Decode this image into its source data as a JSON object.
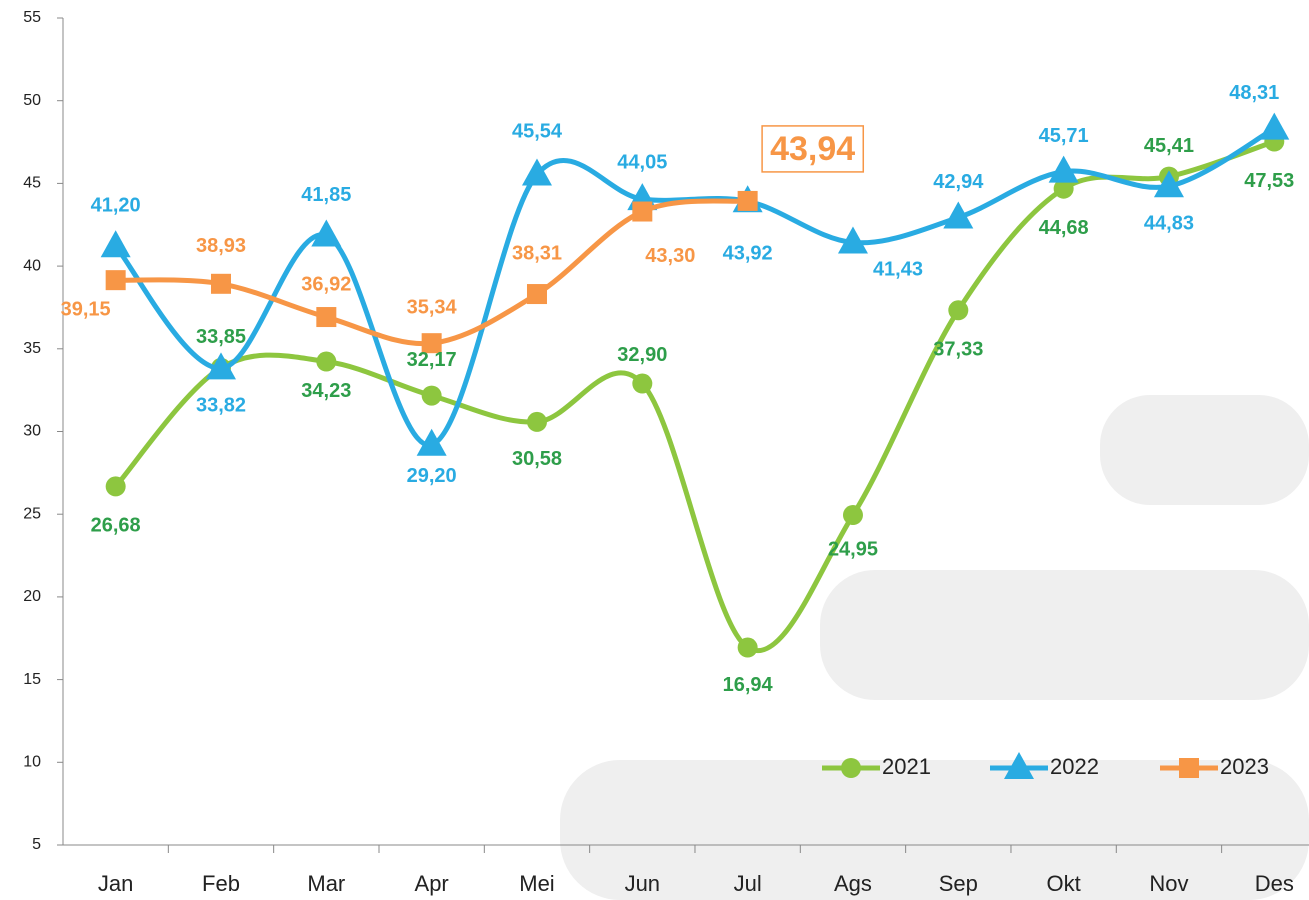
{
  "chart_data": {
    "type": "line",
    "categories": [
      "Jan",
      "Feb",
      "Mar",
      "Apr",
      "Mei",
      "Jun",
      "Jul",
      "Ags",
      "Sep",
      "Okt",
      "Nov",
      "Des"
    ],
    "series": [
      {
        "name": "2021",
        "color": "#8dc63f",
        "label_color": "#2e9e4a",
        "marker": "circle",
        "values": [
          26.68,
          33.85,
          34.23,
          32.17,
          30.58,
          32.9,
          16.94,
          24.95,
          37.33,
          44.68,
          45.41,
          47.53
        ],
        "value_labels": [
          "26,68",
          "33,85",
          "34,23",
          "32,17",
          "30,58",
          "32,90",
          "16,94",
          "24,95",
          "37,33",
          "44,68",
          "45,41",
          "47,53"
        ]
      },
      {
        "name": "2022",
        "color": "#29abe2",
        "label_color": "#29abe2",
        "marker": "triangle",
        "values": [
          41.2,
          33.82,
          41.85,
          29.2,
          45.54,
          44.05,
          43.92,
          41.43,
          42.94,
          45.71,
          44.83,
          48.31
        ],
        "value_labels": [
          "41,20",
          "33,82",
          "41,85",
          "29,20",
          "45,54",
          "44,05",
          "43,92",
          "41,43",
          "42,94",
          "45,71",
          "44,83",
          "48,31"
        ]
      },
      {
        "name": "2023",
        "color": "#f79646",
        "label_color": "#f79646",
        "marker": "square",
        "values": [
          39.15,
          38.93,
          36.92,
          35.34,
          38.31,
          43.3,
          43.94,
          null,
          null,
          null,
          null,
          null
        ],
        "value_labels": [
          "39,15",
          "38,93",
          "36,92",
          "35,34",
          "38,31",
          "43,30",
          "43,94",
          null,
          null,
          null,
          null,
          null
        ]
      }
    ],
    "ylim": [
      5,
      55
    ],
    "yticks": [
      5,
      10,
      15,
      20,
      25,
      30,
      35,
      40,
      45,
      50,
      55
    ],
    "grid": false,
    "legend": "lower right"
  }
}
